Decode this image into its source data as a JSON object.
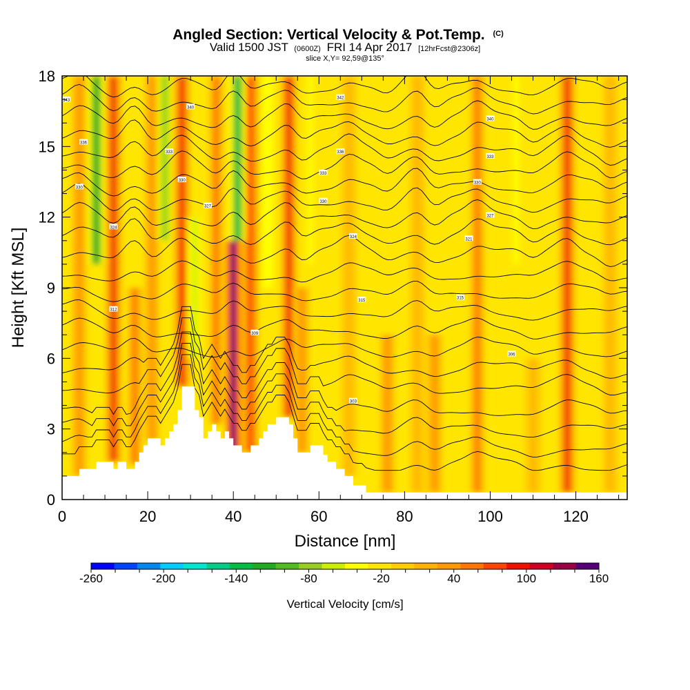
{
  "header": {
    "title_main": "Angled Section: Vertical Velocity & Pot.Temp.",
    "title_tag": "(C)",
    "subtitle_a": "Valid 1500 JST",
    "subtitle_b": "(0600Z)",
    "subtitle_c": "FRI 14 Apr 2017",
    "subtitle_d": "[12hrFcst@2306z]",
    "slice": "slice X,Y= 92,59@135°"
  },
  "chart_data": {
    "type": "heatmap",
    "xlabel": "Distance [nm]",
    "ylabel": "Height [Kft MSL]",
    "xlim": [
      0,
      132
    ],
    "ylim": [
      0,
      18
    ],
    "x_ticks": [
      0,
      20,
      40,
      60,
      80,
      100,
      120
    ],
    "y_ticks": [
      0,
      3,
      6,
      9,
      12,
      15,
      18
    ],
    "colorbar": {
      "label": "Vertical Velocity [cm/s]",
      "min": -260,
      "max": 160,
      "step": 20,
      "tick_labels": [
        "-260",
        "-200",
        "-140",
        "-80",
        "-20",
        "40",
        "100",
        "160"
      ],
      "colors": [
        "#0000ff",
        "#0044ff",
        "#0088ee",
        "#00ccff",
        "#00e5d0",
        "#00cc88",
        "#00bb44",
        "#22aa22",
        "#55bb22",
        "#99cc22",
        "#ccee00",
        "#ffff00",
        "#ffe600",
        "#ffcc00",
        "#ffb300",
        "#ff9900",
        "#ff7700",
        "#ff4400",
        "#ee1100",
        "#cc0022",
        "#990044",
        "#550077"
      ]
    },
    "background_level_cm_s": -10,
    "updrafts": [
      {
        "x": 4,
        "ymin": 1,
        "ymax": 18,
        "w_cm_s": 40
      },
      {
        "x": 12,
        "ymin": 1.6,
        "ymax": 18,
        "w_cm_s": 100
      },
      {
        "x": 17,
        "ymin": 1.5,
        "ymax": 9,
        "w_cm_s": 60
      },
      {
        "x": 21,
        "ymin": 2.5,
        "ymax": 18,
        "w_cm_s": 50
      },
      {
        "x": 28,
        "ymin": 4.8,
        "ymax": 18,
        "w_cm_s": 100
      },
      {
        "x": 36,
        "ymin": 3.2,
        "ymax": 18,
        "w_cm_s": 70
      },
      {
        "x": 40,
        "ymin": 2,
        "ymax": 11,
        "w_cm_s": 160
      },
      {
        "x": 44,
        "ymin": 2,
        "ymax": 18,
        "w_cm_s": 80
      },
      {
        "x": 53,
        "ymin": 3.5,
        "ymax": 18,
        "w_cm_s": 100
      },
      {
        "x": 56,
        "ymin": 2,
        "ymax": 9,
        "w_cm_s": 40
      },
      {
        "x": 67,
        "ymin": 1,
        "ymax": 18,
        "w_cm_s": 30
      },
      {
        "x": 76,
        "ymin": 0.3,
        "ymax": 7,
        "w_cm_s": 40
      },
      {
        "x": 83,
        "ymin": 0.3,
        "ymax": 18,
        "w_cm_s": 30
      },
      {
        "x": 87,
        "ymin": 0.3,
        "ymax": 7,
        "w_cm_s": 40
      },
      {
        "x": 97,
        "ymin": 0.3,
        "ymax": 18,
        "w_cm_s": 70
      },
      {
        "x": 110,
        "ymin": 0.3,
        "ymax": 6,
        "w_cm_s": 30
      },
      {
        "x": 118,
        "ymin": 0.3,
        "ymax": 18,
        "w_cm_s": 100
      },
      {
        "x": 128,
        "ymin": 0.3,
        "ymax": 18,
        "w_cm_s": 30
      }
    ],
    "downdrafts": [
      {
        "x": 8,
        "ymin": 10,
        "ymax": 18,
        "w_cm_s": -120
      },
      {
        "x": 24,
        "ymin": 11,
        "ymax": 18,
        "w_cm_s": -80
      },
      {
        "x": 41,
        "ymin": 11,
        "ymax": 18,
        "w_cm_s": -140
      },
      {
        "x": 48,
        "ymin": 9,
        "ymax": 18,
        "w_cm_s": -40
      },
      {
        "x": 31,
        "ymin": 6,
        "ymax": 12,
        "w_cm_s": -50
      },
      {
        "x": 58,
        "ymin": 10,
        "ymax": 18,
        "w_cm_s": -30
      },
      {
        "x": 106,
        "ymin": 10,
        "ymax": 18,
        "w_cm_s": -30
      },
      {
        "x": 114,
        "ymin": 2,
        "ymax": 8,
        "w_cm_s": -20
      }
    ],
    "terrain": [
      {
        "x": 0,
        "y": 1.0
      },
      {
        "x": 4,
        "y": 1.0
      },
      {
        "x": 4,
        "y": 1.3
      },
      {
        "x": 8,
        "y": 1.3
      },
      {
        "x": 8,
        "y": 1.6
      },
      {
        "x": 12,
        "y": 1.6
      },
      {
        "x": 12,
        "y": 1.3
      },
      {
        "x": 13,
        "y": 1.3
      },
      {
        "x": 13,
        "y": 1.6
      },
      {
        "x": 15,
        "y": 1.6
      },
      {
        "x": 15,
        "y": 1.3
      },
      {
        "x": 17,
        "y": 1.3
      },
      {
        "x": 17,
        "y": 1.6
      },
      {
        "x": 18,
        "y": 1.6
      },
      {
        "x": 18,
        "y": 2.0
      },
      {
        "x": 19,
        "y": 2.0
      },
      {
        "x": 19,
        "y": 2.3
      },
      {
        "x": 20,
        "y": 2.3
      },
      {
        "x": 20,
        "y": 2.6
      },
      {
        "x": 23,
        "y": 2.6
      },
      {
        "x": 23,
        "y": 2.3
      },
      {
        "x": 24,
        "y": 2.3
      },
      {
        "x": 24,
        "y": 2.6
      },
      {
        "x": 25,
        "y": 2.6
      },
      {
        "x": 25,
        "y": 2.9
      },
      {
        "x": 26,
        "y": 2.9
      },
      {
        "x": 26,
        "y": 3.2
      },
      {
        "x": 27,
        "y": 3.2
      },
      {
        "x": 27,
        "y": 3.8
      },
      {
        "x": 28,
        "y": 3.8
      },
      {
        "x": 28,
        "y": 4.8
      },
      {
        "x": 31,
        "y": 4.8
      },
      {
        "x": 31,
        "y": 3.8
      },
      {
        "x": 32,
        "y": 3.8
      },
      {
        "x": 32,
        "y": 3.5
      },
      {
        "x": 33,
        "y": 3.5
      },
      {
        "x": 33,
        "y": 2.6
      },
      {
        "x": 34,
        "y": 2.6
      },
      {
        "x": 34,
        "y": 2.9
      },
      {
        "x": 35,
        "y": 2.9
      },
      {
        "x": 35,
        "y": 3.2
      },
      {
        "x": 36,
        "y": 3.2
      },
      {
        "x": 36,
        "y": 2.9
      },
      {
        "x": 37,
        "y": 2.9
      },
      {
        "x": 37,
        "y": 2.6
      },
      {
        "x": 38,
        "y": 2.6
      },
      {
        "x": 38,
        "y": 2.9
      },
      {
        "x": 39,
        "y": 2.9
      },
      {
        "x": 39,
        "y": 2.6
      },
      {
        "x": 40,
        "y": 2.6
      },
      {
        "x": 40,
        "y": 2.3
      },
      {
        "x": 42,
        "y": 2.3
      },
      {
        "x": 42,
        "y": 2.0
      },
      {
        "x": 44,
        "y": 2.0
      },
      {
        "x": 44,
        "y": 2.3
      },
      {
        "x": 46,
        "y": 2.3
      },
      {
        "x": 46,
        "y": 2.6
      },
      {
        "x": 47,
        "y": 2.6
      },
      {
        "x": 47,
        "y": 2.9
      },
      {
        "x": 48,
        "y": 2.9
      },
      {
        "x": 48,
        "y": 3.2
      },
      {
        "x": 50,
        "y": 3.2
      },
      {
        "x": 50,
        "y": 3.5
      },
      {
        "x": 53,
        "y": 3.5
      },
      {
        "x": 53,
        "y": 3.2
      },
      {
        "x": 54,
        "y": 3.2
      },
      {
        "x": 54,
        "y": 2.6
      },
      {
        "x": 55,
        "y": 2.6
      },
      {
        "x": 55,
        "y": 2.0
      },
      {
        "x": 58,
        "y": 2.0
      },
      {
        "x": 58,
        "y": 2.3
      },
      {
        "x": 61,
        "y": 2.3
      },
      {
        "x": 61,
        "y": 1.9
      },
      {
        "x": 62,
        "y": 1.9
      },
      {
        "x": 62,
        "y": 1.6
      },
      {
        "x": 64,
        "y": 1.6
      },
      {
        "x": 64,
        "y": 1.3
      },
      {
        "x": 66,
        "y": 1.3
      },
      {
        "x": 66,
        "y": 1.0
      },
      {
        "x": 68,
        "y": 1.0
      },
      {
        "x": 68,
        "y": 0.6
      },
      {
        "x": 71,
        "y": 0.6
      },
      {
        "x": 71,
        "y": 0.3
      },
      {
        "x": 132,
        "y": 0.3
      }
    ],
    "theta_contours_kft": [
      1.5,
      2.2,
      3.0,
      3.8,
      4.8,
      5.6,
      6.4,
      7.2,
      8.0,
      8.8,
      9.6,
      10.5,
      11.3,
      12.0,
      12.7,
      13.4,
      14.1,
      14.8,
      15.5,
      16.2,
      16.9,
      17.6
    ],
    "contour_labels": [
      {
        "x": 1,
        "y": 17.0,
        "text": "343"
      },
      {
        "x": 5,
        "y": 15.2,
        "text": "336"
      },
      {
        "x": 4,
        "y": 13.3,
        "text": "330"
      },
      {
        "x": 12,
        "y": 11.6,
        "text": "324"
      },
      {
        "x": 12,
        "y": 8.1,
        "text": "312"
      },
      {
        "x": 30,
        "y": 16.7,
        "text": "340"
      },
      {
        "x": 25,
        "y": 14.8,
        "text": "333"
      },
      {
        "x": 28,
        "y": 13.6,
        "text": "330"
      },
      {
        "x": 34,
        "y": 12.5,
        "text": "327"
      },
      {
        "x": 45,
        "y": 7.1,
        "text": "309"
      },
      {
        "x": 65,
        "y": 17.1,
        "text": "342"
      },
      {
        "x": 65,
        "y": 14.8,
        "text": "336"
      },
      {
        "x": 61,
        "y": 13.9,
        "text": "333"
      },
      {
        "x": 61,
        "y": 12.7,
        "text": "330"
      },
      {
        "x": 68,
        "y": 11.2,
        "text": "324"
      },
      {
        "x": 70,
        "y": 8.5,
        "text": "315"
      },
      {
        "x": 68,
        "y": 4.2,
        "text": "303"
      },
      {
        "x": 93,
        "y": 8.6,
        "text": "315"
      },
      {
        "x": 95,
        "y": 11.1,
        "text": "321"
      },
      {
        "x": 100,
        "y": 16.2,
        "text": "340"
      },
      {
        "x": 100,
        "y": 14.6,
        "text": "333"
      },
      {
        "x": 97,
        "y": 13.5,
        "text": "330"
      },
      {
        "x": 100,
        "y": 12.1,
        "text": "327"
      },
      {
        "x": 105,
        "y": 6.2,
        "text": "306"
      }
    ]
  }
}
